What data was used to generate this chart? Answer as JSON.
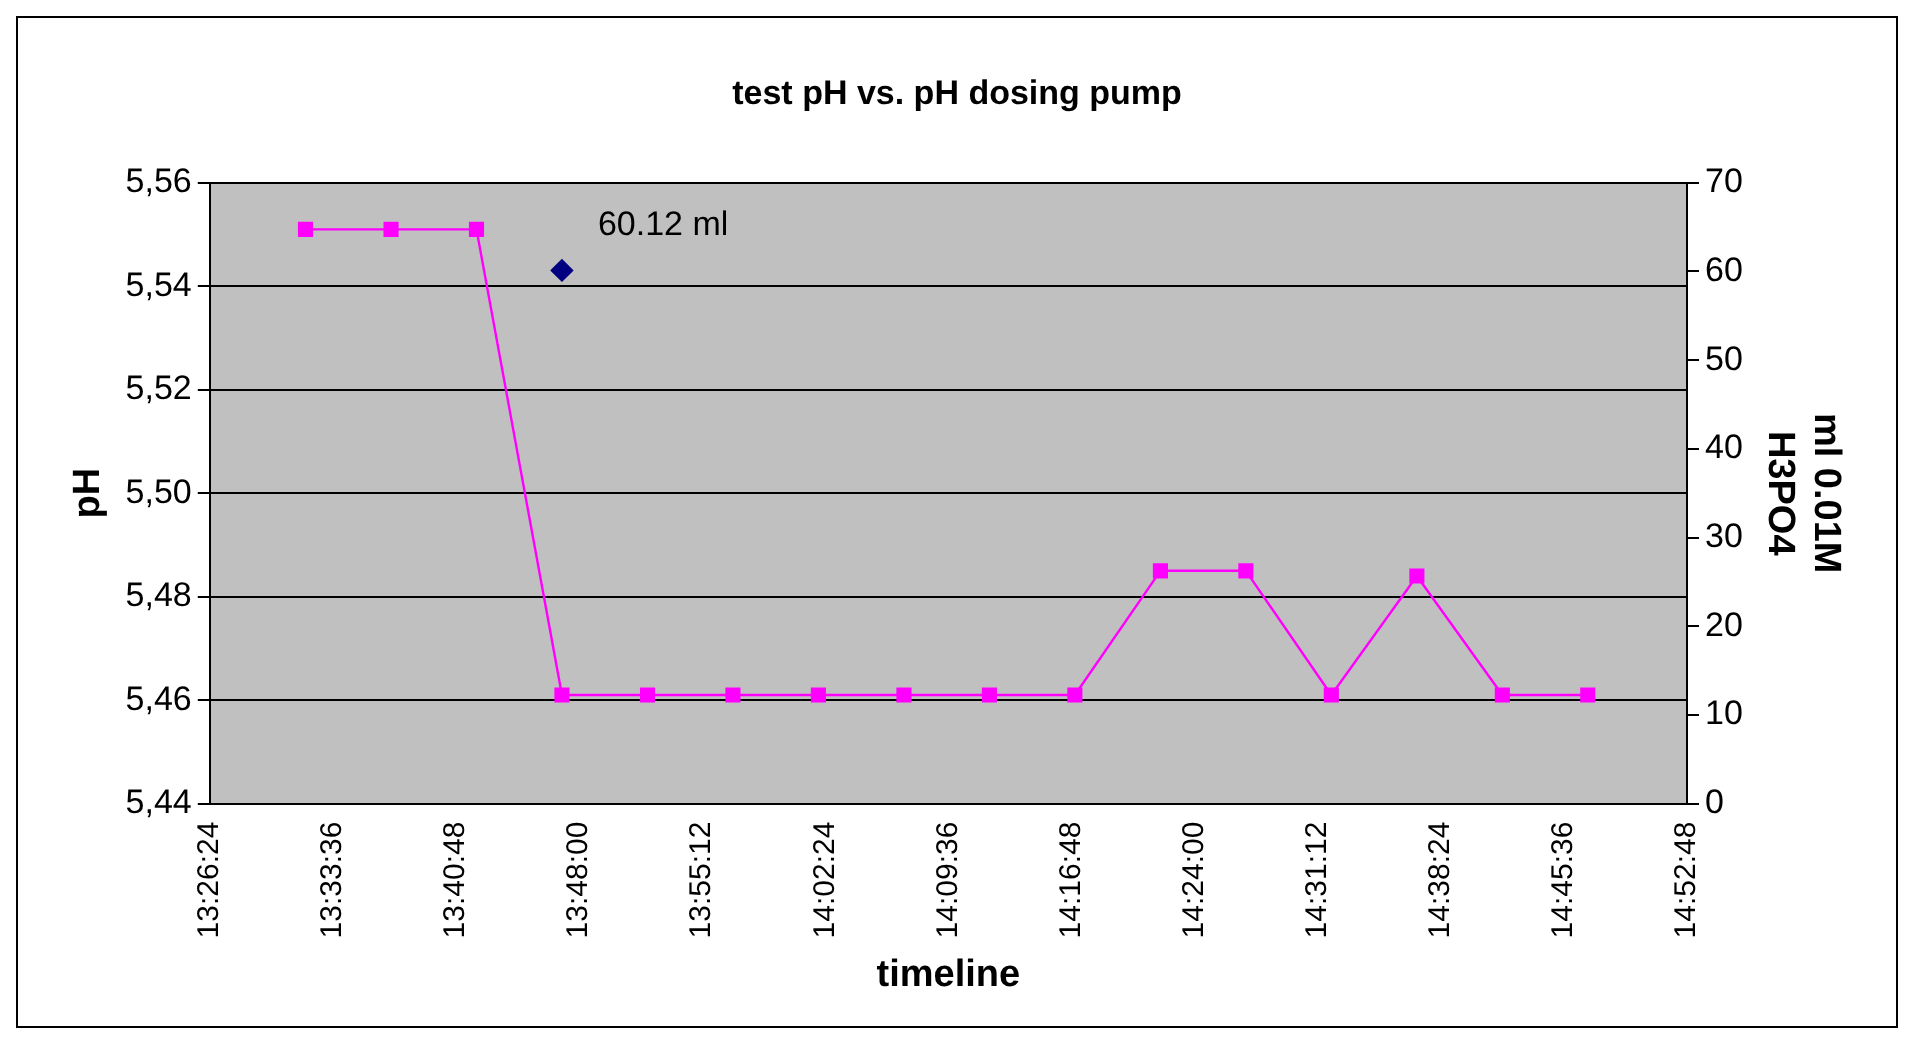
{
  "chart_data": {
    "type": "line",
    "title": "test pH vs. pH dosing pump",
    "xlabel": "timeline",
    "ylabel": "pH",
    "y2label": "ml 0.01M H3PO4",
    "series": [
      {
        "type": "line",
        "color": "#ff00ff",
        "marker": "square",
        "x": [
          13.5333,
          13.6167,
          13.7,
          13.7833,
          13.8667,
          13.95,
          14.0333,
          14.1167,
          14.2,
          14.2833,
          14.3667,
          14.45,
          14.5333,
          14.6167,
          14.7,
          14.7833
        ],
        "values": [
          5.551,
          5.551,
          5.551,
          5.461,
          5.461,
          5.461,
          5.461,
          5.461,
          5.461,
          5.461,
          5.485,
          5.485,
          5.461,
          5.484,
          5.461,
          5.461
        ]
      },
      {
        "type": "scatter",
        "color": "#000080",
        "marker": "diamond",
        "axis": "y2",
        "x": [
          13.7833
        ],
        "values": [
          60.12
        ],
        "value_labels": [
          "60.12 ml"
        ]
      }
    ],
    "xlim": [
      13.44,
      14.88
    ],
    "xticks": [
      {
        "value": 13.44,
        "label": "13:26:24"
      },
      {
        "value": 13.56,
        "label": "13:33:36"
      },
      {
        "value": 13.68,
        "label": "13:40:48"
      },
      {
        "value": 13.8,
        "label": "13:48:00"
      },
      {
        "value": 13.92,
        "label": "13:55:12"
      },
      {
        "value": 14.04,
        "label": "14:02:24"
      },
      {
        "value": 14.16,
        "label": "14:09:36"
      },
      {
        "value": 14.28,
        "label": "14:16:48"
      },
      {
        "value": 14.4,
        "label": "14:24:00"
      },
      {
        "value": 14.52,
        "label": "14:31:12"
      },
      {
        "value": 14.64,
        "label": "14:38:24"
      },
      {
        "value": 14.76,
        "label": "14:45:36"
      },
      {
        "value": 14.88,
        "label": "14:52:48"
      }
    ],
    "ylim": [
      5.44,
      5.56
    ],
    "yticks": [
      {
        "value": 5.44,
        "label": "5,44"
      },
      {
        "value": 5.46,
        "label": "5,46"
      },
      {
        "value": 5.48,
        "label": "5,48"
      },
      {
        "value": 5.5,
        "label": "5,50"
      },
      {
        "value": 5.52,
        "label": "5,52"
      },
      {
        "value": 5.54,
        "label": "5,54"
      },
      {
        "value": 5.56,
        "label": "5,56"
      }
    ],
    "y2lim": [
      0,
      70
    ],
    "y2ticks": [
      0,
      10,
      20,
      30,
      40,
      50,
      60,
      70
    ],
    "grid": "y",
    "legend": false
  }
}
